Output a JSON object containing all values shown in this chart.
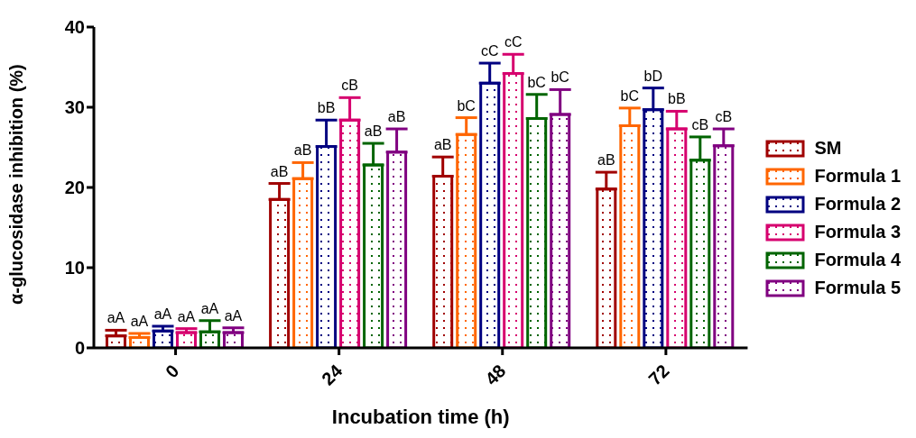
{
  "chart_data": {
    "type": "bar",
    "xlabel": "Incubation time (h)",
    "ylabel": "α-glucosidase inhibition (%)",
    "categories": [
      "0",
      "24",
      "48",
      "72"
    ],
    "ylim": [
      0,
      40
    ],
    "yticks": [
      0,
      10,
      20,
      30,
      40
    ],
    "grid": false,
    "legend": "right",
    "series": [
      {
        "name": "SM",
        "color": "#a00000",
        "values": [
          1.5,
          18.5,
          21.4,
          19.8
        ],
        "errors": [
          [
            1.5,
            2.2
          ],
          [
            18.5,
            20.5
          ],
          [
            21.4,
            23.8
          ],
          [
            19.8,
            21.9
          ]
        ],
        "value_labels": [
          "aA",
          "aB",
          "aB",
          "aB"
        ]
      },
      {
        "name": "Formula 1",
        "color": "#ff6600",
        "values": [
          1.3,
          21.1,
          26.6,
          27.7
        ],
        "errors": [
          [
            1.3,
            1.8
          ],
          [
            21.1,
            23.1
          ],
          [
            26.6,
            28.7
          ],
          [
            27.7,
            29.9
          ]
        ],
        "value_labels": [
          "aA",
          "aB",
          "bC",
          "bC"
        ]
      },
      {
        "name": "Formula 2",
        "color": "#000080",
        "values": [
          2.1,
          25.1,
          33.0,
          29.7
        ],
        "errors": [
          [
            2.1,
            2.7
          ],
          [
            25.1,
            28.4
          ],
          [
            33.0,
            35.5
          ],
          [
            29.7,
            32.4
          ]
        ],
        "value_labels": [
          "aA",
          "bB",
          "cC",
          "bD"
        ]
      },
      {
        "name": "Formula 3",
        "color": "#d6006e",
        "values": [
          1.9,
          28.4,
          34.2,
          27.3
        ],
        "errors": [
          [
            1.9,
            2.4
          ],
          [
            28.4,
            31.2
          ],
          [
            34.2,
            36.6
          ],
          [
            27.3,
            29.5
          ]
        ],
        "value_labels": [
          "aA",
          "cB",
          "cC",
          "bB"
        ]
      },
      {
        "name": "Formula 4",
        "color": "#006400",
        "values": [
          2.0,
          22.8,
          28.6,
          23.4
        ],
        "errors": [
          [
            2.0,
            3.4
          ],
          [
            22.8,
            25.5
          ],
          [
            28.6,
            31.6
          ],
          [
            23.4,
            26.3
          ]
        ],
        "value_labels": [
          "aA",
          "aB",
          "bC",
          "cB"
        ]
      },
      {
        "name": "Formula 5",
        "color": "#800080",
        "values": [
          1.9,
          24.4,
          29.1,
          25.2
        ],
        "errors": [
          [
            1.9,
            2.5
          ],
          [
            24.4,
            27.3
          ],
          [
            29.1,
            32.2
          ],
          [
            25.2,
            27.3
          ]
        ],
        "value_labels": [
          "aA",
          "aB",
          "bC",
          "cB"
        ]
      }
    ]
  }
}
